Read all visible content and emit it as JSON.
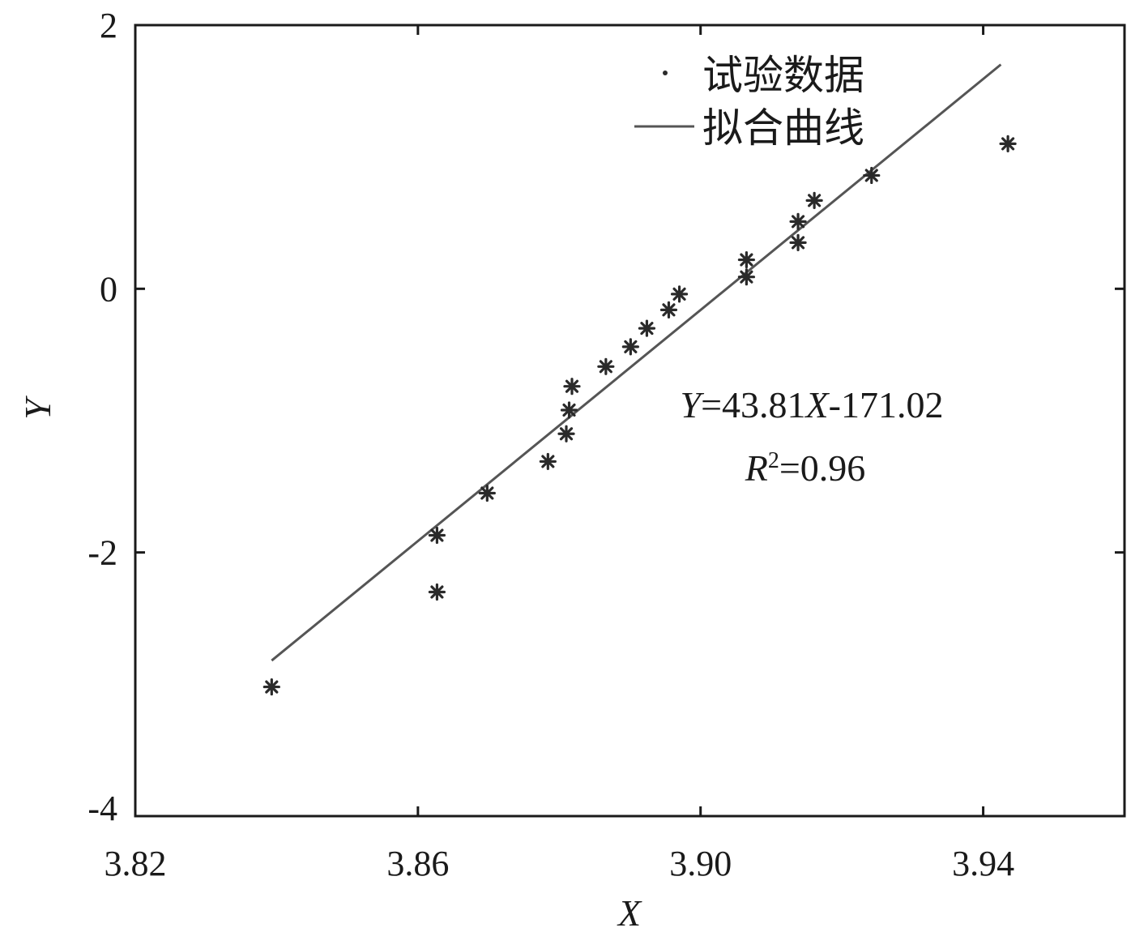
{
  "chart_data": {
    "type": "scatter",
    "xlabel": "X",
    "ylabel": "Y",
    "xlim": [
      3.82,
      3.96
    ],
    "ylim": [
      -4,
      2
    ],
    "xticks": [
      "3.82",
      "3.86",
      "3.90",
      "3.94"
    ],
    "xtick_values": [
      3.82,
      3.86,
      3.9,
      3.94
    ],
    "yticks": [
      "2",
      "0",
      "-2",
      "-4"
    ],
    "ytick_values": [
      2,
      0,
      -2,
      -4
    ],
    "grid": false,
    "legend_position": "top-right",
    "legend": [
      {
        "label": "试验数据",
        "kind": "marker"
      },
      {
        "label": "拟合曲线",
        "kind": "line"
      }
    ],
    "series": [
      {
        "name": "试验数据",
        "type": "scatter",
        "marker": "asterisk",
        "color": "#2a2a2a",
        "points": [
          {
            "x": 3.8393,
            "y": -3.02
          },
          {
            "x": 3.8627,
            "y": -1.87
          },
          {
            "x": 3.8627,
            "y": -2.3
          },
          {
            "x": 3.8698,
            "y": -1.55
          },
          {
            "x": 3.8784,
            "y": -1.31
          },
          {
            "x": 3.881,
            "y": -1.1
          },
          {
            "x": 3.8814,
            "y": -0.92
          },
          {
            "x": 3.8818,
            "y": -0.74
          },
          {
            "x": 3.8866,
            "y": -0.59
          },
          {
            "x": 3.8901,
            "y": -0.44
          },
          {
            "x": 3.8924,
            "y": -0.3
          },
          {
            "x": 3.8955,
            "y": -0.16
          },
          {
            "x": 3.897,
            "y": -0.04
          },
          {
            "x": 3.9065,
            "y": 0.09
          },
          {
            "x": 3.9065,
            "y": 0.22
          },
          {
            "x": 3.9138,
            "y": 0.35
          },
          {
            "x": 3.9138,
            "y": 0.51
          },
          {
            "x": 3.9161,
            "y": 0.67
          },
          {
            "x": 3.9242,
            "y": 0.86
          },
          {
            "x": 3.9435,
            "y": 1.1
          }
        ]
      },
      {
        "name": "拟合曲线",
        "type": "line",
        "color": "#555555",
        "slope": 43.81,
        "intercept": -171.02,
        "x_range": [
          3.8393,
          3.9425
        ]
      }
    ],
    "annotations": {
      "equation": {
        "y_sym": "Y",
        "eq_a": "=43.81",
        "x_sym": "X",
        "eq_b": "-171.02"
      },
      "r2": {
        "r_sym": "R",
        "sup": "2",
        "value": "=0.96"
      }
    }
  }
}
